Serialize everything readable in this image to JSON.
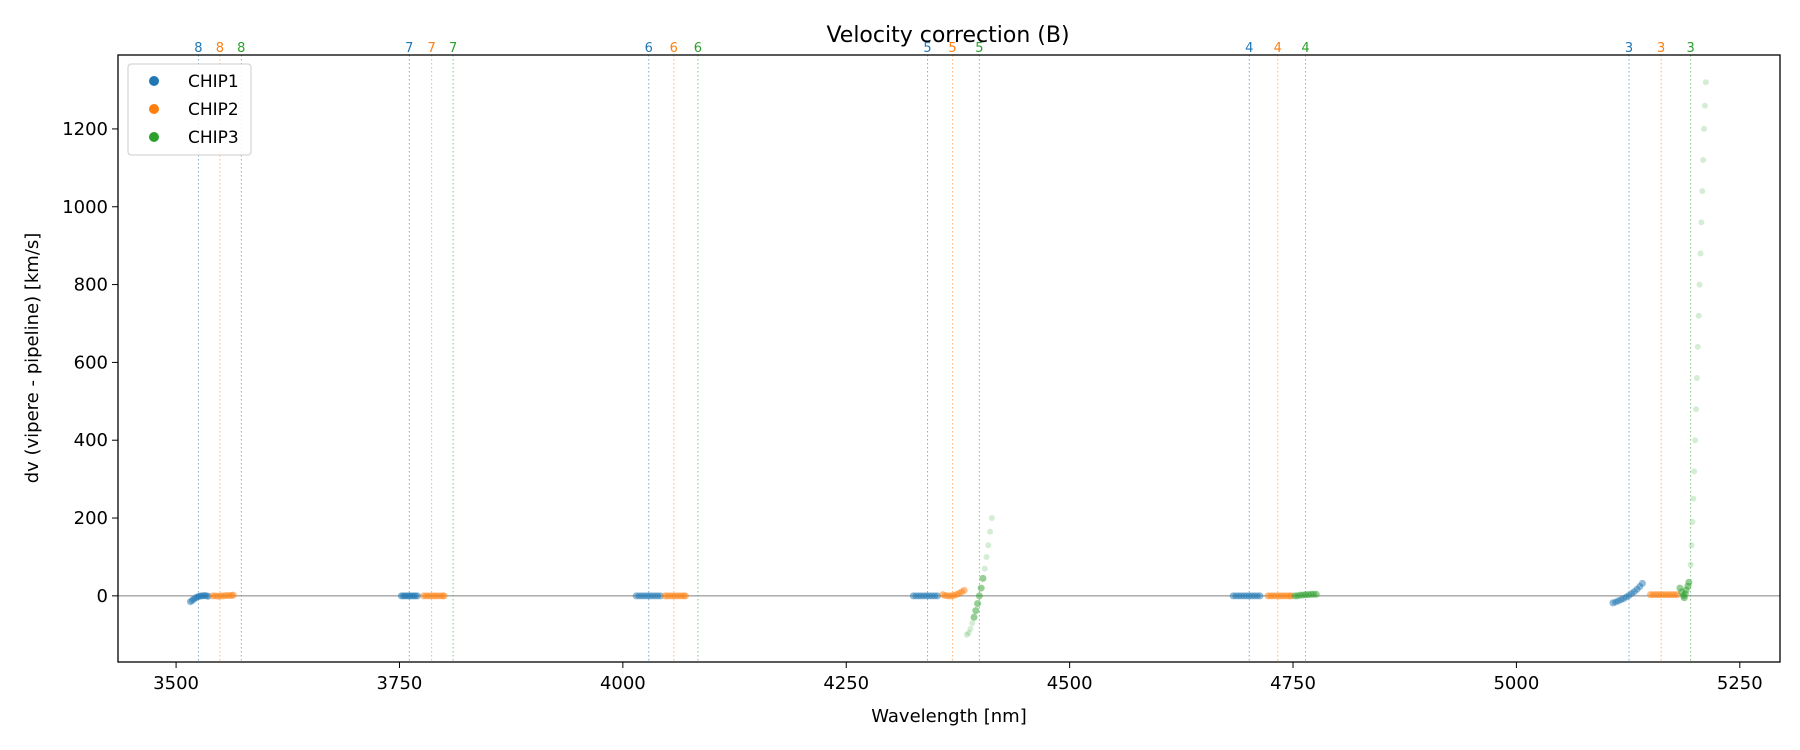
{
  "chart_data": {
    "type": "scatter",
    "title": "Velocity correction (B)",
    "xlabel": "Wavelength [nm]",
    "ylabel": "dv (vipere - pipeline) [km/s]",
    "xlim": [
      3435,
      5295
    ],
    "ylim": [
      -170,
      1390
    ],
    "xticks": [
      3500,
      3750,
      4000,
      4250,
      4500,
      4750,
      5000,
      5250
    ],
    "yticks": [
      0,
      200,
      400,
      600,
      800,
      1000,
      1200
    ],
    "zero_line": 0,
    "colors": {
      "CHIP1": "#1f77b4",
      "CHIP2": "#ff7f0e",
      "CHIP3": "#2ca02c"
    },
    "legend": {
      "position": "top-left",
      "entries": [
        {
          "label": "CHIP1",
          "color": "#1f77b4"
        },
        {
          "label": "CHIP2",
          "color": "#ff7f0e"
        },
        {
          "label": "CHIP3",
          "color": "#2ca02c"
        }
      ]
    },
    "order_lines": [
      {
        "chip": "CHIP1",
        "label": "8",
        "x": 3525
      },
      {
        "chip": "CHIP2",
        "label": "8",
        "x": 3549
      },
      {
        "chip": "CHIP3",
        "label": "8",
        "x": 3573
      },
      {
        "chip": "CHIP1",
        "label": "7",
        "x": 3761
      },
      {
        "chip": "CHIP2",
        "label": "7",
        "x": 3786
      },
      {
        "chip": "CHIP3",
        "label": "7",
        "x": 3810
      },
      {
        "chip": "CHIP1",
        "label": "6",
        "x": 4029
      },
      {
        "chip": "CHIP2",
        "label": "6",
        "x": 4057
      },
      {
        "chip": "CHIP3",
        "label": "6",
        "x": 4084
      },
      {
        "chip": "CHIP1",
        "label": "5",
        "x": 4341
      },
      {
        "chip": "CHIP2",
        "label": "5",
        "x": 4369
      },
      {
        "chip": "CHIP3",
        "label": "5",
        "x": 4399
      },
      {
        "chip": "CHIP1",
        "label": "4",
        "x": 4701
      },
      {
        "chip": "CHIP2",
        "label": "4",
        "x": 4733
      },
      {
        "chip": "CHIP3",
        "label": "4",
        "x": 4764
      },
      {
        "chip": "CHIP1",
        "label": "3",
        "x": 5126
      },
      {
        "chip": "CHIP2",
        "label": "3",
        "x": 5162
      },
      {
        "chip": "CHIP3",
        "label": "3",
        "x": 5195
      }
    ],
    "series": [
      {
        "name": "CHIP1",
        "color": "#1f77b4",
        "points": [
          [
            3516,
            -15
          ],
          [
            3518,
            -12
          ],
          [
            3520,
            -8
          ],
          [
            3522,
            -5
          ],
          [
            3524,
            -3
          ],
          [
            3526,
            -1
          ],
          [
            3528,
            0
          ],
          [
            3530,
            0
          ],
          [
            3532,
            1
          ],
          [
            3534,
            0
          ],
          [
            3536,
            -1
          ],
          [
            3752,
            0
          ],
          [
            3754,
            0
          ],
          [
            3756,
            0
          ],
          [
            3758,
            0
          ],
          [
            3760,
            0
          ],
          [
            3762,
            0
          ],
          [
            3764,
            0
          ],
          [
            3766,
            0
          ],
          [
            3768,
            0
          ],
          [
            3770,
            0
          ],
          [
            4015,
            0
          ],
          [
            4018,
            0
          ],
          [
            4021,
            0
          ],
          [
            4024,
            0
          ],
          [
            4027,
            0
          ],
          [
            4030,
            0
          ],
          [
            4033,
            0
          ],
          [
            4036,
            0
          ],
          [
            4039,
            0
          ],
          [
            4042,
            0
          ],
          [
            4325,
            0
          ],
          [
            4328,
            0
          ],
          [
            4331,
            0
          ],
          [
            4334,
            0
          ],
          [
            4337,
            0
          ],
          [
            4340,
            0
          ],
          [
            4343,
            0
          ],
          [
            4346,
            0
          ],
          [
            4349,
            0
          ],
          [
            4352,
            0
          ],
          [
            4683,
            0
          ],
          [
            4686,
            0
          ],
          [
            4689,
            0
          ],
          [
            4692,
            0
          ],
          [
            4695,
            0
          ],
          [
            4698,
            0
          ],
          [
            4701,
            0
          ],
          [
            4704,
            0
          ],
          [
            4707,
            0
          ],
          [
            4710,
            0
          ],
          [
            4713,
            0
          ],
          [
            5108,
            -18
          ],
          [
            5111,
            -16
          ],
          [
            5114,
            -13
          ],
          [
            5117,
            -10
          ],
          [
            5120,
            -7
          ],
          [
            5123,
            -3
          ],
          [
            5126,
            1
          ],
          [
            5129,
            6
          ],
          [
            5132,
            11
          ],
          [
            5135,
            17
          ],
          [
            5138,
            24
          ],
          [
            5141,
            32
          ]
        ]
      },
      {
        "name": "CHIP2",
        "color": "#ff7f0e",
        "points": [
          [
            3541,
            0
          ],
          [
            3544,
            0
          ],
          [
            3547,
            -1
          ],
          [
            3550,
            0
          ],
          [
            3553,
            0
          ],
          [
            3556,
            1
          ],
          [
            3559,
            1
          ],
          [
            3562,
            1
          ],
          [
            3564,
            2
          ],
          [
            3777,
            0
          ],
          [
            3780,
            0
          ],
          [
            3783,
            0
          ],
          [
            3786,
            0
          ],
          [
            3789,
            0
          ],
          [
            3792,
            0
          ],
          [
            3795,
            0
          ],
          [
            3798,
            0
          ],
          [
            3800,
            0
          ],
          [
            4047,
            0
          ],
          [
            4050,
            0
          ],
          [
            4053,
            0
          ],
          [
            4056,
            0
          ],
          [
            4059,
            0
          ],
          [
            4062,
            0
          ],
          [
            4065,
            0
          ],
          [
            4068,
            0
          ],
          [
            4070,
            0
          ],
          [
            4358,
            3
          ],
          [
            4361,
            1
          ],
          [
            4364,
            0
          ],
          [
            4367,
            0
          ],
          [
            4370,
            1
          ],
          [
            4373,
            3
          ],
          [
            4376,
            6
          ],
          [
            4379,
            10
          ],
          [
            4382,
            14
          ],
          [
            4722,
            0
          ],
          [
            4725,
            0
          ],
          [
            4728,
            0
          ],
          [
            4731,
            0
          ],
          [
            4734,
            0
          ],
          [
            4737,
            0
          ],
          [
            4740,
            0
          ],
          [
            4743,
            0
          ],
          [
            4746,
            0
          ],
          [
            4748,
            0
          ],
          [
            5150,
            3
          ],
          [
            5153,
            3
          ],
          [
            5156,
            3
          ],
          [
            5159,
            3
          ],
          [
            5162,
            3
          ],
          [
            5165,
            3
          ],
          [
            5168,
            3
          ],
          [
            5171,
            3
          ],
          [
            5174,
            3
          ],
          [
            5177,
            3
          ],
          [
            5180,
            3
          ]
        ]
      },
      {
        "name": "CHIP3",
        "color": "#2ca02c",
        "points": [
          [
            4385,
            -100
          ],
          [
            4387,
            -95
          ],
          [
            4389,
            -85
          ],
          [
            4391,
            -70
          ],
          [
            4393,
            -55
          ],
          [
            4395,
            -38
          ],
          [
            4397,
            -20
          ],
          [
            4399,
            0
          ],
          [
            4401,
            20
          ],
          [
            4403,
            45
          ],
          [
            4405,
            70
          ],
          [
            4407,
            100
          ],
          [
            4409,
            130
          ],
          [
            4411,
            165
          ],
          [
            4413,
            200
          ],
          [
            4752,
            0
          ],
          [
            4755,
            0
          ],
          [
            4758,
            2
          ],
          [
            4761,
            2
          ],
          [
            4764,
            3
          ],
          [
            4767,
            3
          ],
          [
            4770,
            4
          ],
          [
            4773,
            4
          ],
          [
            4776,
            4
          ],
          [
            5183,
            20
          ],
          [
            5185,
            10
          ],
          [
            5187,
            0
          ],
          [
            5188,
            -5
          ],
          [
            5189,
            5
          ],
          [
            5190,
            15
          ],
          [
            5192,
            25
          ],
          [
            5193,
            35
          ],
          [
            5195,
            80
          ],
          [
            5196,
            130
          ],
          [
            5197,
            190
          ],
          [
            5198,
            250
          ],
          [
            5199,
            320
          ],
          [
            5200,
            400
          ],
          [
            5201,
            480
          ],
          [
            5202,
            560
          ],
          [
            5203,
            640
          ],
          [
            5204,
            720
          ],
          [
            5205,
            800
          ],
          [
            5206,
            880
          ],
          [
            5207,
            960
          ],
          [
            5208,
            1040
          ],
          [
            5209,
            1120
          ],
          [
            5210,
            1200
          ],
          [
            5211,
            1260
          ],
          [
            5212,
            1320
          ]
        ]
      }
    ]
  }
}
